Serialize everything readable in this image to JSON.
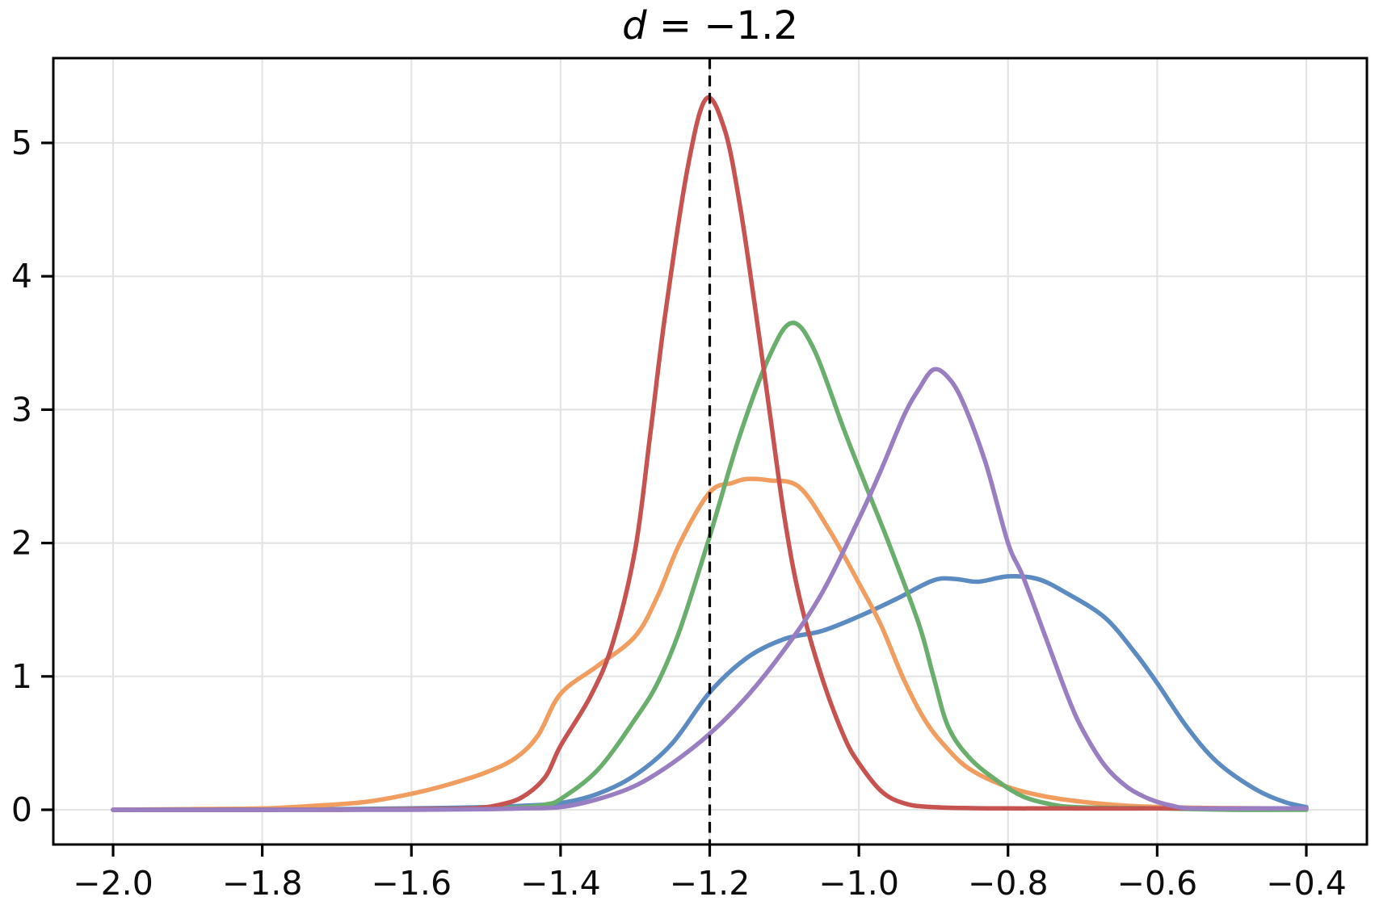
{
  "title": {
    "variable": "d",
    "equation": " = −1.2"
  },
  "chart_data": {
    "type": "line",
    "title": "d = −1.2",
    "xlabel": "",
    "ylabel": "",
    "grid": true,
    "legend": null,
    "xlim": [
      -2.08,
      -0.318
    ],
    "ylim": [
      -0.26,
      5.63
    ],
    "x_ticks": [
      -2.0,
      -1.8,
      -1.6,
      -1.4,
      -1.2,
      -1.0,
      -0.8,
      -0.6,
      -0.4
    ],
    "x_tick_labels": [
      "−2.0",
      "−1.8",
      "−1.6",
      "−1.4",
      "−1.2",
      "−1.0",
      "−0.8",
      "−0.6",
      "−0.4"
    ],
    "y_ticks": [
      0,
      1,
      2,
      3,
      4,
      5
    ],
    "y_tick_labels": [
      "0",
      "1",
      "2",
      "3",
      "4",
      "5"
    ],
    "frame_color": "#000000",
    "grid_color": "#e4e4e4",
    "vline": {
      "x": -1.2,
      "style": "dashed",
      "color": "#000000"
    },
    "series": [
      {
        "name": "blue",
        "color": "#5b8bc1",
        "points": [
          [
            -2.0,
            0
          ],
          [
            -1.9,
            0
          ],
          [
            -1.8,
            0
          ],
          [
            -1.7,
            0.005
          ],
          [
            -1.6,
            0.01
          ],
          [
            -1.5,
            0.02
          ],
          [
            -1.45,
            0.03
          ],
          [
            -1.4,
            0.05
          ],
          [
            -1.35,
            0.12
          ],
          [
            -1.3,
            0.26
          ],
          [
            -1.25,
            0.5
          ],
          [
            -1.2,
            0.88
          ],
          [
            -1.15,
            1.14
          ],
          [
            -1.1,
            1.28
          ],
          [
            -1.05,
            1.34
          ],
          [
            -1.0,
            1.45
          ],
          [
            -0.95,
            1.58
          ],
          [
            -0.9,
            1.72
          ],
          [
            -0.87,
            1.73
          ],
          [
            -0.84,
            1.71
          ],
          [
            -0.8,
            1.75
          ],
          [
            -0.76,
            1.73
          ],
          [
            -0.72,
            1.62
          ],
          [
            -0.67,
            1.44
          ],
          [
            -0.63,
            1.18
          ],
          [
            -0.6,
            0.95
          ],
          [
            -0.56,
            0.62
          ],
          [
            -0.52,
            0.36
          ],
          [
            -0.47,
            0.16
          ],
          [
            -0.43,
            0.06
          ],
          [
            -0.4,
            0.02
          ]
        ]
      },
      {
        "name": "orange",
        "color": "#f09d5f",
        "points": [
          [
            -2.0,
            0
          ],
          [
            -1.9,
            0.005
          ],
          [
            -1.8,
            0.01
          ],
          [
            -1.73,
            0.03
          ],
          [
            -1.66,
            0.06
          ],
          [
            -1.6,
            0.12
          ],
          [
            -1.55,
            0.19
          ],
          [
            -1.5,
            0.28
          ],
          [
            -1.46,
            0.39
          ],
          [
            -1.43,
            0.56
          ],
          [
            -1.4,
            0.87
          ],
          [
            -1.35,
            1.08
          ],
          [
            -1.3,
            1.3
          ],
          [
            -1.27,
            1.6
          ],
          [
            -1.24,
            2.0
          ],
          [
            -1.2,
            2.38
          ],
          [
            -1.17,
            2.45
          ],
          [
            -1.15,
            2.48
          ],
          [
            -1.12,
            2.47
          ],
          [
            -1.08,
            2.42
          ],
          [
            -1.04,
            2.1
          ],
          [
            -1.0,
            1.7
          ],
          [
            -0.97,
            1.38
          ],
          [
            -0.94,
            0.98
          ],
          [
            -0.91,
            0.66
          ],
          [
            -0.88,
            0.45
          ],
          [
            -0.85,
            0.3
          ],
          [
            -0.8,
            0.17
          ],
          [
            -0.75,
            0.1
          ],
          [
            -0.7,
            0.06
          ],
          [
            -0.64,
            0.03
          ],
          [
            -0.55,
            0.015
          ],
          [
            -0.45,
            0.01
          ],
          [
            -0.4,
            0.01
          ]
        ]
      },
      {
        "name": "green",
        "color": "#69ae6d",
        "points": [
          [
            -2.0,
            0
          ],
          [
            -1.9,
            0
          ],
          [
            -1.8,
            0
          ],
          [
            -1.7,
            0
          ],
          [
            -1.6,
            0.005
          ],
          [
            -1.5,
            0.01
          ],
          [
            -1.45,
            0.02
          ],
          [
            -1.42,
            0.04
          ],
          [
            -1.4,
            0.08
          ],
          [
            -1.35,
            0.3
          ],
          [
            -1.3,
            0.68
          ],
          [
            -1.27,
            0.95
          ],
          [
            -1.24,
            1.35
          ],
          [
            -1.2,
            2.05
          ],
          [
            -1.16,
            2.8
          ],
          [
            -1.12,
            3.4
          ],
          [
            -1.09,
            3.65
          ],
          [
            -1.06,
            3.45
          ],
          [
            -1.02,
            2.85
          ],
          [
            -0.99,
            2.42
          ],
          [
            -0.96,
            2.0
          ],
          [
            -0.92,
            1.4
          ],
          [
            -0.9,
            1.0
          ],
          [
            -0.88,
            0.62
          ],
          [
            -0.85,
            0.38
          ],
          [
            -0.81,
            0.2
          ],
          [
            -0.78,
            0.1
          ],
          [
            -0.75,
            0.05
          ],
          [
            -0.71,
            0.02
          ],
          [
            -0.6,
            0.01
          ],
          [
            -0.5,
            0
          ],
          [
            -0.4,
            0
          ]
        ]
      },
      {
        "name": "red",
        "color": "#c75350",
        "points": [
          [
            -2.0,
            0
          ],
          [
            -1.9,
            0
          ],
          [
            -1.8,
            0
          ],
          [
            -1.7,
            0
          ],
          [
            -1.6,
            0.005
          ],
          [
            -1.52,
            0.01
          ],
          [
            -1.48,
            0.04
          ],
          [
            -1.45,
            0.1
          ],
          [
            -1.42,
            0.25
          ],
          [
            -1.4,
            0.48
          ],
          [
            -1.36,
            0.85
          ],
          [
            -1.33,
            1.25
          ],
          [
            -1.3,
            1.95
          ],
          [
            -1.28,
            2.8
          ],
          [
            -1.26,
            3.7
          ],
          [
            -1.23,
            4.8
          ],
          [
            -1.205,
            5.33
          ],
          [
            -1.18,
            5.1
          ],
          [
            -1.16,
            4.55
          ],
          [
            -1.14,
            3.8
          ],
          [
            -1.12,
            3.0
          ],
          [
            -1.1,
            2.2
          ],
          [
            -1.08,
            1.6
          ],
          [
            -1.05,
            1.0
          ],
          [
            -1.02,
            0.55
          ],
          [
            -1.0,
            0.35
          ],
          [
            -0.97,
            0.14
          ],
          [
            -0.94,
            0.05
          ],
          [
            -0.9,
            0.02
          ],
          [
            -0.8,
            0.01
          ],
          [
            -0.6,
            0.01
          ],
          [
            -0.4,
            0.01
          ]
        ]
      },
      {
        "name": "purple",
        "color": "#9a7ec2",
        "points": [
          [
            -2.0,
            0
          ],
          [
            -1.9,
            0
          ],
          [
            -1.8,
            0
          ],
          [
            -1.7,
            0
          ],
          [
            -1.6,
            0
          ],
          [
            -1.5,
            0.005
          ],
          [
            -1.45,
            0.01
          ],
          [
            -1.4,
            0.02
          ],
          [
            -1.35,
            0.08
          ],
          [
            -1.3,
            0.18
          ],
          [
            -1.25,
            0.35
          ],
          [
            -1.2,
            0.57
          ],
          [
            -1.15,
            0.85
          ],
          [
            -1.1,
            1.2
          ],
          [
            -1.05,
            1.62
          ],
          [
            -1.0,
            2.18
          ],
          [
            -0.97,
            2.55
          ],
          [
            -0.94,
            2.95
          ],
          [
            -0.92,
            3.15
          ],
          [
            -0.9,
            3.3
          ],
          [
            -0.88,
            3.24
          ],
          [
            -0.86,
            3.05
          ],
          [
            -0.83,
            2.6
          ],
          [
            -0.8,
            2.0
          ],
          [
            -0.78,
            1.75
          ],
          [
            -0.75,
            1.3
          ],
          [
            -0.72,
            0.85
          ],
          [
            -0.7,
            0.6
          ],
          [
            -0.67,
            0.33
          ],
          [
            -0.64,
            0.17
          ],
          [
            -0.61,
            0.08
          ],
          [
            -0.58,
            0.03
          ],
          [
            -0.55,
            0.01
          ],
          [
            -0.45,
            0.01
          ],
          [
            -0.4,
            0.01
          ]
        ]
      }
    ]
  }
}
